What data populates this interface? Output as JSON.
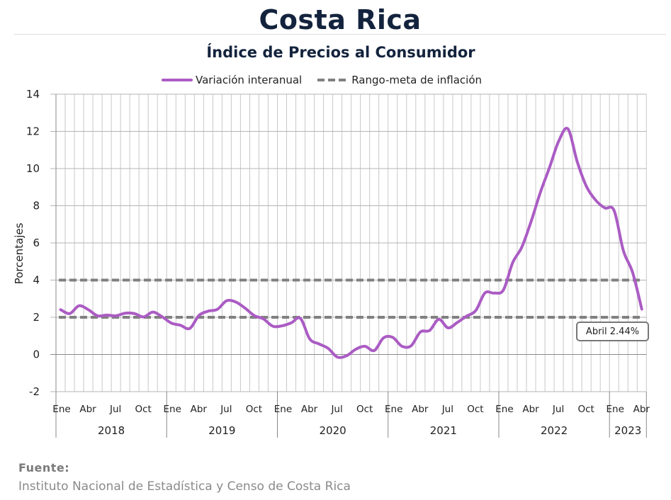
{
  "header": {
    "title": "Costa Rica",
    "subtitle": "Índice de Precios al Consumidor"
  },
  "source": {
    "label": "Fuente:",
    "text": "Instituto Nacional de Estadística y Censo de Costa Rica"
  },
  "chart_data": {
    "type": "line",
    "title": "Índice de Precios al Consumidor",
    "xlabel": "",
    "ylabel": "Porcentajes",
    "ylim": [
      -2,
      14
    ],
    "yticks": [
      -2,
      0,
      2,
      4,
      6,
      8,
      10,
      12,
      14
    ],
    "ytick_labels": [
      "-2",
      "0",
      "2",
      "4",
      "6",
      "8",
      "10",
      "12",
      "14"
    ],
    "negative_tick_color": "#ff0000",
    "grid": true,
    "legend_position": "top-center",
    "month_tick_labels": [
      "Ene",
      "Abr",
      "Jul",
      "Oct"
    ],
    "years": [
      {
        "label": "2018",
        "months": 12
      },
      {
        "label": "2019",
        "months": 12
      },
      {
        "label": "2020",
        "months": 12
      },
      {
        "label": "2021",
        "months": 12
      },
      {
        "label": "2022",
        "months": 12
      },
      {
        "label": "2023",
        "months": 4
      }
    ],
    "series": [
      {
        "name": "Variación interanual",
        "color": "#ab5cc4",
        "style": "solid",
        "values": [
          2.41,
          2.2,
          2.62,
          2.41,
          2.08,
          2.12,
          2.08,
          2.22,
          2.2,
          2.02,
          2.28,
          2.03,
          1.69,
          1.57,
          1.4,
          2.1,
          2.33,
          2.43,
          2.89,
          2.82,
          2.49,
          2.09,
          1.91,
          1.52,
          1.54,
          1.7,
          1.94,
          0.84,
          0.57,
          0.33,
          -0.14,
          -0.07,
          0.28,
          0.44,
          0.21,
          0.89,
          0.92,
          0.44,
          0.47,
          1.21,
          1.29,
          1.89,
          1.43,
          1.72,
          2.06,
          2.36,
          3.31,
          3.3,
          3.47,
          4.93,
          5.78,
          7.15,
          8.71,
          10.06,
          11.48,
          12.13,
          10.37,
          9.04,
          8.3,
          7.88,
          7.74,
          5.59,
          4.42,
          2.44
        ]
      },
      {
        "name": "Rango-meta de inflación",
        "color": "#808080",
        "style": "dashed",
        "bands": [
          2,
          4
        ]
      }
    ],
    "annotations": [
      {
        "text": "Abril 2.44%",
        "x": "Abr 2023",
        "y": 2.44
      }
    ]
  }
}
